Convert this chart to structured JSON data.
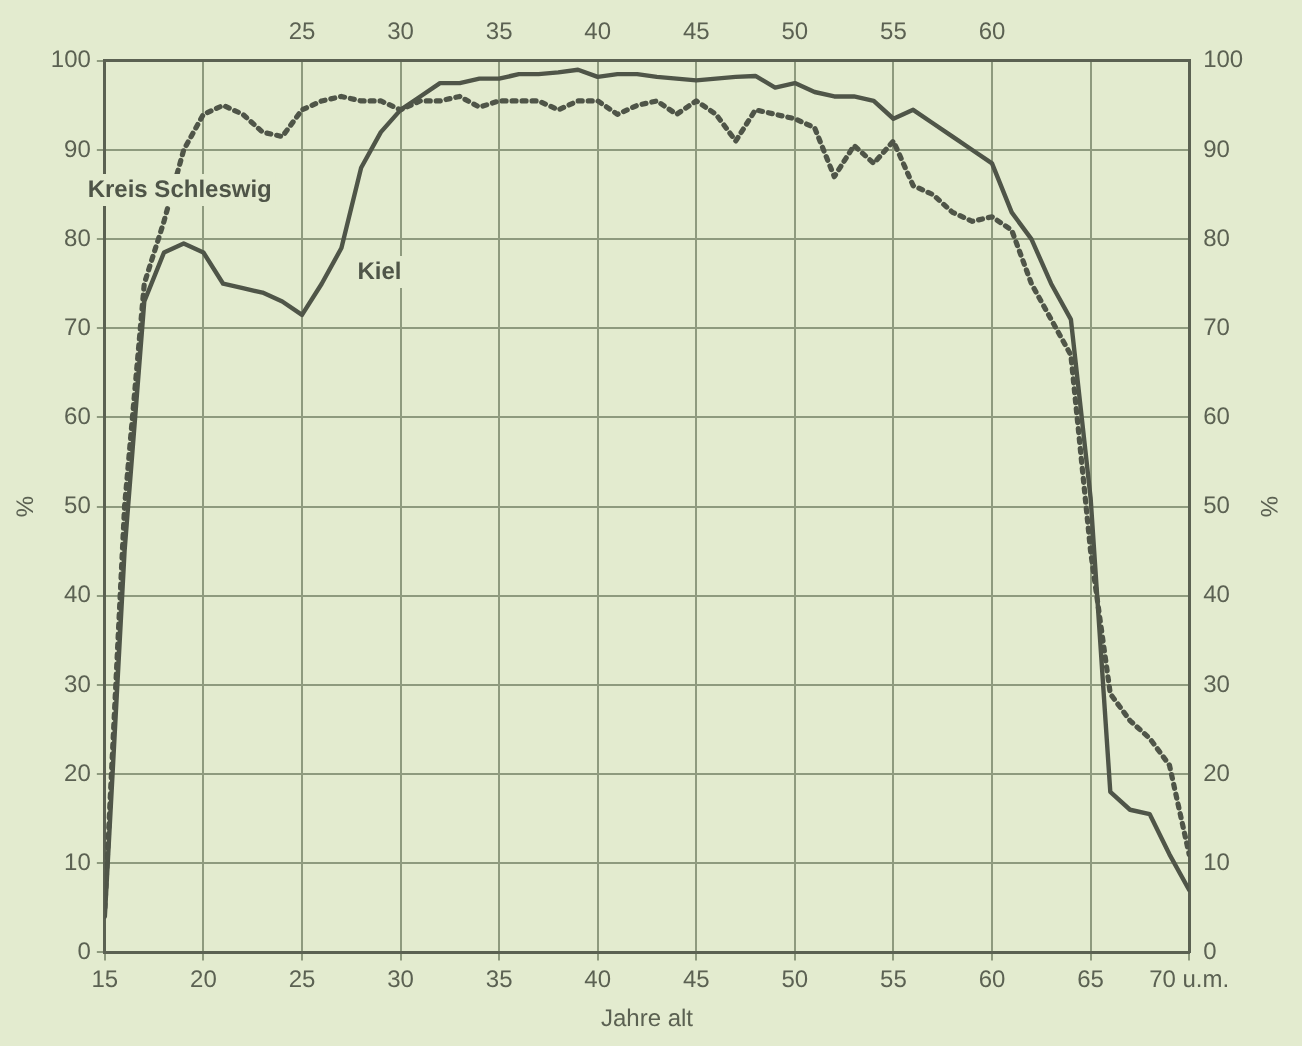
{
  "chart_data": {
    "type": "line",
    "xlabel": "Jahre alt",
    "ylabel": "%",
    "y2label": "%",
    "x": [
      15,
      16,
      17,
      18,
      19,
      20,
      21,
      22,
      23,
      24,
      25,
      26,
      27,
      28,
      29,
      30,
      31,
      32,
      33,
      34,
      35,
      36,
      37,
      38,
      39,
      40,
      41,
      42,
      43,
      44,
      45,
      46,
      47,
      48,
      49,
      50,
      51,
      52,
      53,
      54,
      55,
      56,
      57,
      58,
      59,
      60,
      61,
      62,
      63,
      64,
      65,
      66,
      67,
      68,
      69,
      70
    ],
    "series": [
      {
        "name": "Kiel",
        "color": "#4f5548",
        "line_style": "solid",
        "values": [
          4,
          45,
          73,
          78.5,
          79.5,
          78.5,
          75,
          74.5,
          74,
          73,
          71.5,
          75,
          79,
          88,
          92,
          94.5,
          96,
          97.5,
          97.5,
          98,
          98,
          98.5,
          98.5,
          98.7,
          99,
          98.2,
          98.5,
          98.5,
          98.2,
          98,
          97.8,
          98,
          98.2,
          98.3,
          97,
          97.5,
          96.5,
          96,
          96,
          95.5,
          93.5,
          94.5,
          93,
          91.5,
          90,
          88.5,
          83,
          80,
          75,
          71,
          51,
          18,
          16,
          15.5,
          11,
          7
        ]
      },
      {
        "name": "Kreis Schleswig",
        "color": "#4f5548",
        "line_style": "dotted",
        "values": [
          5,
          50,
          75,
          82,
          90,
          94,
          95,
          94,
          92,
          91.5,
          94.5,
          95.5,
          96,
          95.5,
          95.5,
          94.5,
          95.5,
          95.5,
          96,
          94.8,
          95.5,
          95.5,
          95.5,
          94.5,
          95.5,
          95.5,
          94,
          95,
          95.5,
          94,
          95.5,
          94,
          91,
          94.5,
          94,
          93.5,
          92.5,
          87,
          90.5,
          88.5,
          91,
          86,
          85,
          83,
          82,
          82.5,
          81,
          75,
          71,
          67,
          45,
          29,
          26,
          24,
          21,
          11
        ]
      }
    ],
    "xlim": [
      15,
      70
    ],
    "xticks": [
      15,
      20,
      25,
      30,
      35,
      40,
      45,
      50,
      55,
      60,
      65,
      {
        "value": 70,
        "label": "70 u.m."
      }
    ],
    "x2lim": [
      15,
      70
    ],
    "x2ticks": [
      25,
      30,
      35,
      40,
      45,
      50,
      55,
      60
    ],
    "ylim": [
      0,
      100
    ],
    "yticks": [
      0,
      10,
      20,
      30,
      40,
      50,
      60,
      70,
      80,
      90,
      100
    ],
    "y2lim": [
      0,
      100
    ],
    "y2ticks": [
      0,
      10,
      20,
      30,
      40,
      50,
      60,
      70,
      80,
      90,
      100
    ],
    "grid": true,
    "legend": false,
    "marker": "none"
  }
}
